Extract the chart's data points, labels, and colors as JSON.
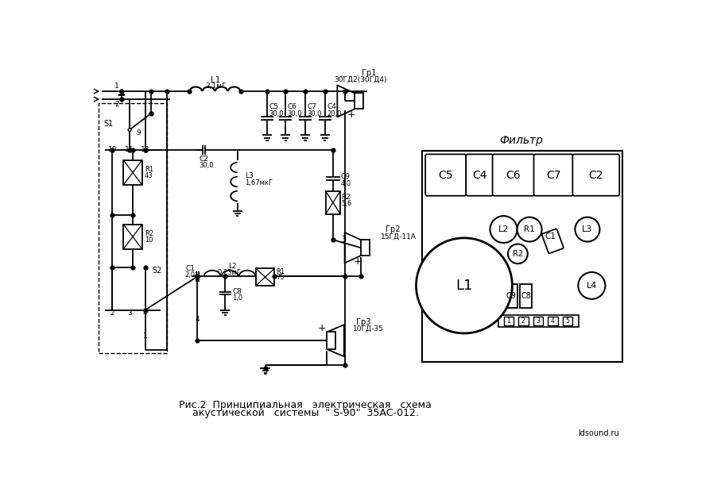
{
  "bg_color": "#ffffff",
  "fig_width": 9.02,
  "fig_height": 6.25,
  "dpi": 100,
  "caption1": "Рис.2  Принципиальная   электрическая   схема",
  "caption2": "акустической   системы  \" S-90\"  35АС-012.",
  "filter_title": "Фильтр",
  "watermark": "ldsound.ru"
}
